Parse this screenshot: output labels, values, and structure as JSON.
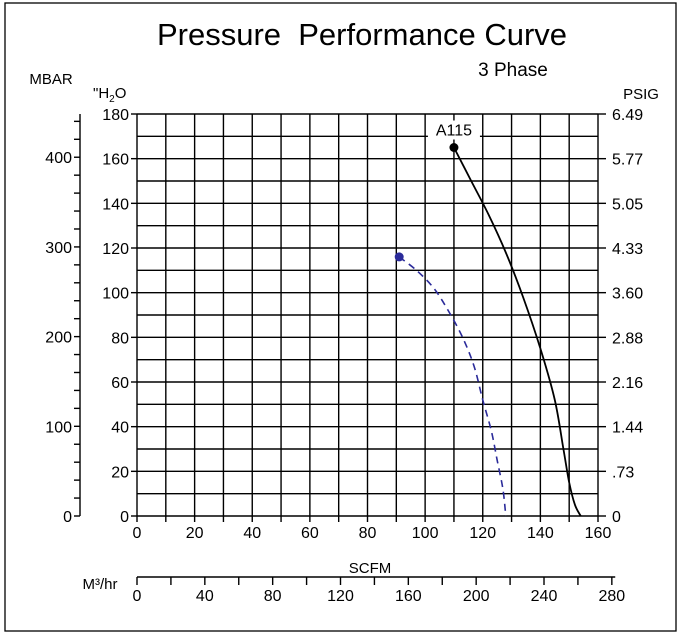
{
  "chart_data": {
    "type": "line",
    "title": "Pressure  Performance Curve",
    "subtitle": "3 Phase",
    "xlabel": "SCFM",
    "x2label": "M³/hr",
    "y_left_outer_label": "MBAR",
    "y_left_inner_label_main": "\"H",
    "y_left_inner_label_sub": "2",
    "y_left_inner_label_tail": "O",
    "y_right_label": "PSIG",
    "xlim": [
      0,
      160
    ],
    "ylim": [
      0,
      180
    ],
    "x_ticks": [
      "0",
      "20",
      "40",
      "60",
      "80",
      "100",
      "120",
      "140",
      "160"
    ],
    "x2_ticks": [
      "0",
      "40",
      "80",
      "120",
      "160",
      "200",
      "240",
      "280"
    ],
    "y_ticks": [
      "0",
      "20",
      "40",
      "60",
      "80",
      "100",
      "120",
      "140",
      "160",
      "180"
    ],
    "mbar_ticks": [
      "0",
      "100",
      "200",
      "300",
      "400"
    ],
    "psig_ticks": [
      "0",
      ".73",
      "1.44",
      "2.16",
      "2.88",
      "3.60",
      "4.33",
      "5.05",
      "5.77",
      "6.49"
    ],
    "grid": true,
    "series": [
      {
        "name": "A115",
        "style": "solid",
        "color": "#000000",
        "x": [
          110,
          116,
          122,
          128,
          134,
          140,
          145,
          148,
          150,
          152,
          154
        ],
        "y": [
          165,
          150,
          135,
          118,
          98,
          75,
          52,
          30,
          15,
          5,
          0
        ]
      },
      {
        "name": "",
        "style": "dashed",
        "color": "#2b2b9a",
        "x": [
          91,
          97,
          103,
          108,
          113,
          117,
          120,
          123,
          125,
          127,
          128
        ],
        "y": [
          116,
          110,
          102,
          92,
          80,
          67,
          52,
          38,
          25,
          12,
          0
        ]
      }
    ]
  }
}
